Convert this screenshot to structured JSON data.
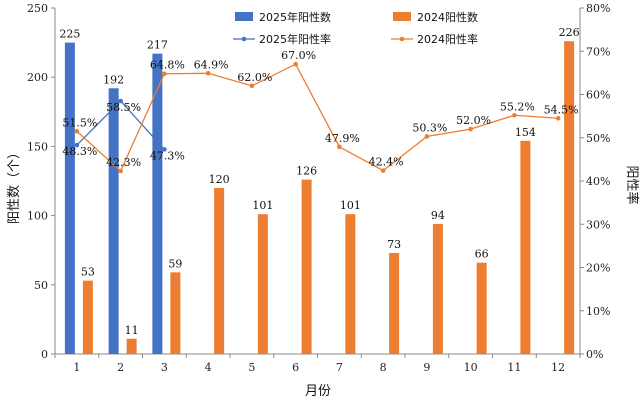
{
  "chart_data": {
    "type": "bar",
    "categories": [
      "1",
      "2",
      "3",
      "4",
      "5",
      "6",
      "7",
      "8",
      "9",
      "10",
      "11",
      "12"
    ],
    "xlabel": "月份",
    "ylabel": "阳性数（个）",
    "y2label": "阳性率",
    "ylim": [
      0,
      250
    ],
    "yticks": [
      0,
      50,
      100,
      150,
      200,
      250
    ],
    "y2lim": [
      0,
      80
    ],
    "y2ticks": [
      "0%",
      "10%",
      "20%",
      "30%",
      "40%",
      "50%",
      "60%",
      "70%",
      "80%"
    ],
    "legend_position": "top",
    "grid": false,
    "series": [
      {
        "name": "2025年阳性数",
        "kind": "bar",
        "axis": "left",
        "color": "#4472c4",
        "values": [
          225,
          192,
          217,
          null,
          null,
          null,
          null,
          null,
          null,
          null,
          null,
          null
        ],
        "labels": [
          "225",
          "192",
          "217"
        ]
      },
      {
        "name": "2024阳性数",
        "kind": "bar",
        "axis": "left",
        "color": "#ed7d31",
        "values": [
          53,
          11,
          59,
          120,
          101,
          126,
          101,
          73,
          94,
          66,
          154,
          226
        ],
        "labels": [
          "53",
          "11",
          "59",
          "120",
          "101",
          "126",
          "101",
          "73",
          "94",
          "66",
          "154",
          "226"
        ]
      },
      {
        "name": "2025年阳性率",
        "kind": "line",
        "axis": "right",
        "color": "#4472c4",
        "values": [
          48.3,
          58.5,
          47.3,
          null,
          null,
          null,
          null,
          null,
          null,
          null,
          null,
          null
        ],
        "labels": [
          "48.3%",
          "58.5%",
          "47.3%"
        ]
      },
      {
        "name": "2024阳性率",
        "kind": "line",
        "axis": "right",
        "color": "#ed7d31",
        "values": [
          51.5,
          42.3,
          64.8,
          64.9,
          62.0,
          67.0,
          47.9,
          42.4,
          50.3,
          52.0,
          55.2,
          54.5
        ],
        "labels": [
          "51.5%",
          "42.3%",
          "64.8%",
          "64.9%",
          "62.0%",
          "67.0%",
          "47.9%",
          "42.4%",
          "50.3%",
          "52.0%",
          "55.2%",
          "54.5%"
        ]
      }
    ]
  }
}
